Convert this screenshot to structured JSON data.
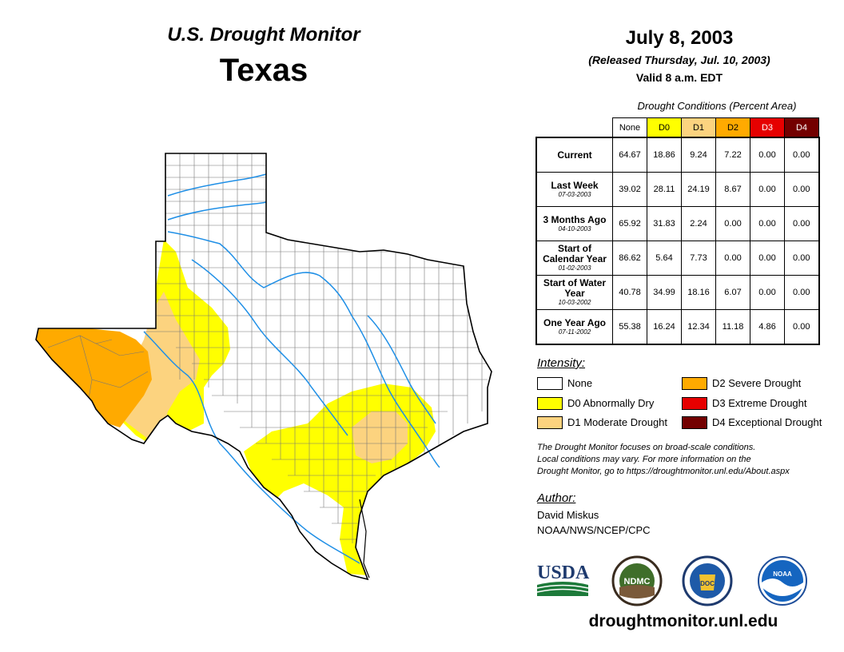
{
  "header": {
    "monitor_title": "U.S. Drought Monitor",
    "region": "Texas",
    "date": "July 8, 2003",
    "released": "(Released Thursday, Jul. 10, 2003)",
    "valid": "Valid 8 a.m. EDT"
  },
  "conditions": {
    "caption": "Drought Conditions (Percent Area)",
    "columns": [
      {
        "label": "None",
        "color": "#ffffff",
        "text_color": "#000000"
      },
      {
        "label": "D0",
        "color": "#ffff00",
        "text_color": "#000000"
      },
      {
        "label": "D1",
        "color": "#fcd37f",
        "text_color": "#000000"
      },
      {
        "label": "D2",
        "color": "#ffaa00",
        "text_color": "#000000"
      },
      {
        "label": "D3",
        "color": "#e60000",
        "text_color": "#ffffff"
      },
      {
        "label": "D4",
        "color": "#730000",
        "text_color": "#ffffff"
      }
    ],
    "rows": [
      {
        "label": "Current",
        "date": "",
        "values": [
          "64.67",
          "18.86",
          "9.24",
          "7.22",
          "0.00",
          "0.00"
        ]
      },
      {
        "label": "Last Week",
        "date": "07-03-2003",
        "values": [
          "39.02",
          "28.11",
          "24.19",
          "8.67",
          "0.00",
          "0.00"
        ]
      },
      {
        "label": "3 Months Ago",
        "date": "04-10-2003",
        "values": [
          "65.92",
          "31.83",
          "2.24",
          "0.00",
          "0.00",
          "0.00"
        ]
      },
      {
        "label": "Start of Calendar Year",
        "date": "01-02-2003",
        "values": [
          "86.62",
          "5.64",
          "7.73",
          "0.00",
          "0.00",
          "0.00"
        ]
      },
      {
        "label": "Start of Water Year",
        "date": "10-03-2002",
        "values": [
          "40.78",
          "34.99",
          "18.16",
          "6.07",
          "0.00",
          "0.00"
        ]
      },
      {
        "label": "One Year Ago",
        "date": "07-11-2002",
        "values": [
          "55.38",
          "16.24",
          "12.34",
          "11.18",
          "4.86",
          "0.00"
        ]
      }
    ]
  },
  "legend": {
    "title": "Intensity:",
    "items": [
      {
        "label": "None",
        "color": "#ffffff"
      },
      {
        "label": "D0 Abnormally Dry",
        "color": "#ffff00"
      },
      {
        "label": "D1 Moderate Drought",
        "color": "#fcd37f"
      },
      {
        "label": "D2 Severe Drought",
        "color": "#ffaa00"
      },
      {
        "label": "D3 Extreme Drought",
        "color": "#e60000"
      },
      {
        "label": "D4 Exceptional Drought",
        "color": "#730000"
      }
    ]
  },
  "note": {
    "line1": "The Drought Monitor focuses on broad-scale conditions.",
    "line2": "Local conditions may vary. For more information on the",
    "line3": "Drought Monitor, go to https://droughtmonitor.unl.edu/About.aspx"
  },
  "author": {
    "title": "Author:",
    "name": "David Miskus",
    "org": "NOAA/NWS/NCEP/CPC"
  },
  "logos": {
    "usda": "USDA",
    "ndmc": "NDMC",
    "noaa": "NOAA",
    "seal": "DOC"
  },
  "footer": {
    "website": "droughtmonitor.unl.edu"
  },
  "colors": {
    "river": "#1f8fe6",
    "border": "#000000",
    "county": "#777777"
  }
}
